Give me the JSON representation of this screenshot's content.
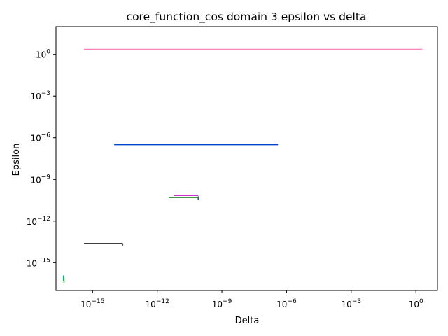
{
  "chart_data": {
    "type": "line",
    "title": "core_function_cos domain 3 epsilon vs delta",
    "xlabel": "Delta",
    "ylabel": "Epsilon",
    "xscale": "log",
    "yscale": "log",
    "xlim": [
      2e-17,
      10.0
    ],
    "ylim": [
      1e-17,
      100.0
    ],
    "grid": false,
    "xticks": [
      {
        "value": 1e-15,
        "base": "10",
        "exp": "−15"
      },
      {
        "value": 1e-12,
        "base": "10",
        "exp": "−12"
      },
      {
        "value": 1e-09,
        "base": "10",
        "exp": "−9"
      },
      {
        "value": 1e-06,
        "base": "10",
        "exp": "−6"
      },
      {
        "value": 0.001,
        "base": "10",
        "exp": "−3"
      },
      {
        "value": 1,
        "base": "10",
        "exp": "0"
      }
    ],
    "yticks": [
      {
        "value": 1e-15,
        "base": "10",
        "exp": "−15"
      },
      {
        "value": 1e-12,
        "base": "10",
        "exp": "−12"
      },
      {
        "value": 1e-09,
        "base": "10",
        "exp": "−9"
      },
      {
        "value": 1e-06,
        "base": "10",
        "exp": "−6"
      },
      {
        "value": 0.001,
        "base": "10",
        "exp": "−3"
      },
      {
        "value": 1,
        "base": "10",
        "exp": "0"
      }
    ],
    "series": [
      {
        "color": "#ff7fbf",
        "x": [
          4e-16,
          2.0
        ],
        "y": [
          2.3,
          2.3
        ]
      },
      {
        "color": "#0044cc",
        "x": [
          1e-14,
          4e-07
        ],
        "y": [
          3.2e-07,
          3.2e-07
        ]
      },
      {
        "color": "#cc33cc",
        "x": [
          6e-12,
          8e-11
        ],
        "y": [
          7e-11,
          7e-11
        ]
      },
      {
        "color": "#228b22",
        "x": [
          3.5e-12,
          8e-11
        ],
        "y": [
          5e-11,
          5e-11
        ]
      },
      {
        "color": "#1f5f8f",
        "x": [
          8e-11,
          8e-11
        ],
        "y": [
          6e-11,
          3.5e-11
        ]
      },
      {
        "color": "#222222",
        "x": [
          4e-16,
          2.5e-14
        ],
        "y": [
          2.4e-14,
          2.4e-14
        ]
      },
      {
        "color": "#555555",
        "x": [
          2.5e-14,
          2.5e-14
        ],
        "y": [
          2.4e-14,
          1.7e-14
        ]
      },
      {
        "color": "#00aa88",
        "x": [
          4.5e-17,
          4.5e-17
        ],
        "y": [
          1.2e-16,
          5e-17
        ]
      },
      {
        "color": "#22bb22",
        "x": [
          4.7e-17,
          4.7e-17
        ],
        "y": [
          9e-17,
          3.5e-17
        ]
      }
    ]
  }
}
